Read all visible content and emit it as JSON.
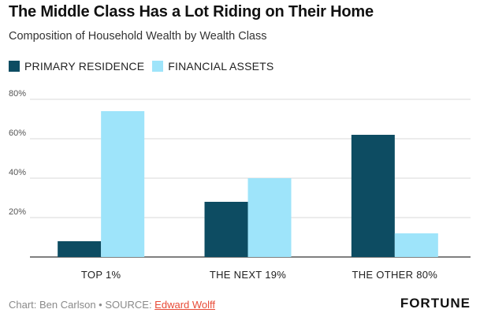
{
  "title": "The Middle Class Has a Lot Riding on Their Home",
  "subtitle": "Composition of Household Wealth by Wealth Class",
  "footer": {
    "credit": "Chart: Ben Carlson • SOURCE: ",
    "source_link": "Edward Wolff"
  },
  "brand": "FORTUNE",
  "colors": {
    "primary_residence": "#0d4c62",
    "financial_assets": "#9ee4fa",
    "link": "#e84b37"
  },
  "chart_data": {
    "type": "bar",
    "title": "The Middle Class Has a Lot Riding on Their Home",
    "subtitle": "Composition of Household Wealth by Wealth Class",
    "categories": [
      "TOP 1%",
      "THE NEXT 19%",
      "THE OTHER 80%"
    ],
    "series": [
      {
        "name": "PRIMARY RESIDENCE",
        "values": [
          8,
          28,
          62
        ],
        "color": "#0d4c62"
      },
      {
        "name": "FINANCIAL ASSETS",
        "values": [
          74,
          40,
          12
        ],
        "color": "#9ee4fa"
      }
    ],
    "yticks": [
      20,
      40,
      60,
      80
    ],
    "ytick_labels": [
      "20%",
      "40%",
      "60%",
      "80%"
    ],
    "ylim": [
      0,
      80
    ],
    "grid": true,
    "legend_position": "top-left"
  }
}
